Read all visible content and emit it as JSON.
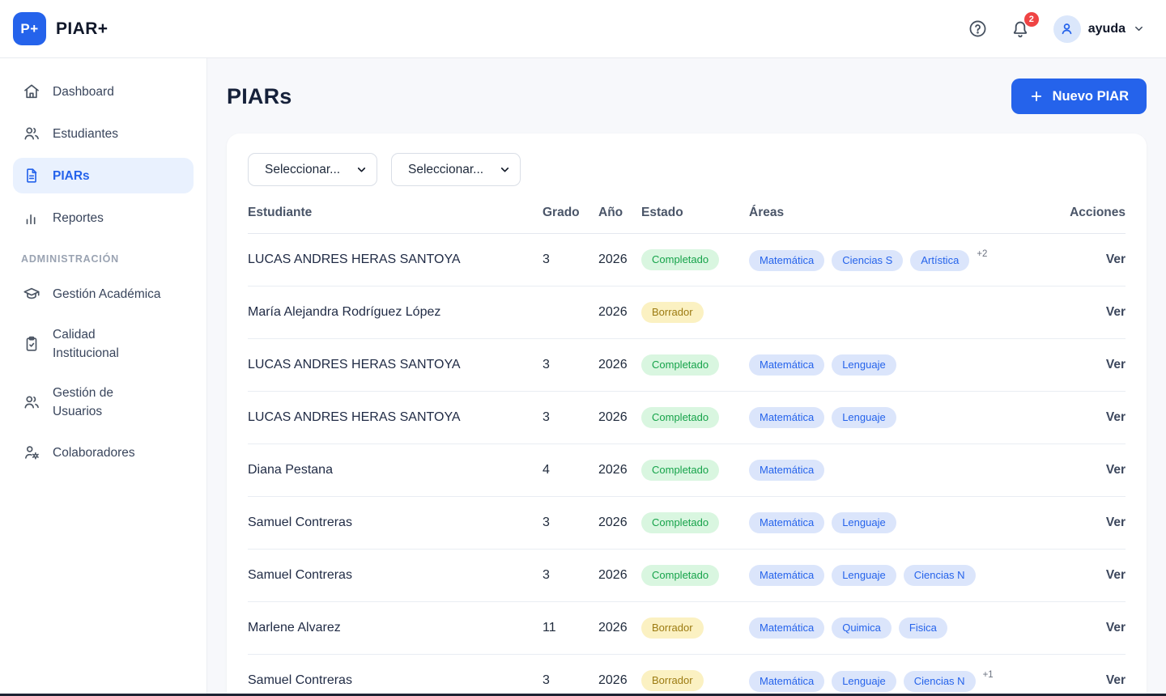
{
  "brand": {
    "logo_text": "P+",
    "name": "PIAR+"
  },
  "topbar": {
    "notification_count": "2",
    "user_label": "ayuda"
  },
  "sidebar": {
    "items": [
      {
        "label": "Dashboard",
        "icon": "home-icon",
        "active": false
      },
      {
        "label": "Estudiantes",
        "icon": "users-icon",
        "active": false
      },
      {
        "label": "PIARs",
        "icon": "document-icon",
        "active": true
      },
      {
        "label": "Reportes",
        "icon": "bar-chart-icon",
        "active": false
      }
    ],
    "section_label": "ADMINISTRACIÓN",
    "admin_items": [
      {
        "label": "Gestión Académica",
        "icon": "graduation-cap-icon",
        "active": false
      },
      {
        "label": "Calidad\nInstitucional",
        "icon": "clipboard-check-icon",
        "active": false
      },
      {
        "label": "Gestión de\nUsuarios",
        "icon": "users-icon",
        "active": false
      },
      {
        "label": "Colaboradores",
        "icon": "user-gear-icon",
        "active": false
      }
    ]
  },
  "main": {
    "title": "PIARs",
    "new_button_label": "Nuevo PIAR",
    "filters": [
      {
        "value": "Seleccionar..."
      },
      {
        "value": "Seleccionar..."
      }
    ],
    "table": {
      "columns": [
        "Estudiante",
        "Grado",
        "Año",
        "Estado",
        "Áreas",
        "Acciones"
      ],
      "action_label": "Ver",
      "rows": [
        {
          "student": "LUCAS ANDRES HERAS SANTOYA",
          "grade": "3",
          "year": "2026",
          "status": "Completado",
          "status_type": "completed",
          "areas": [
            "Matemática",
            "Ciencias S",
            "Artística"
          ],
          "extra": "+2"
        },
        {
          "student": "María Alejandra Rodríguez López",
          "grade": "",
          "year": "2026",
          "status": "Borrador",
          "status_type": "draft",
          "areas": [],
          "extra": ""
        },
        {
          "student": "LUCAS ANDRES HERAS SANTOYA",
          "grade": "3",
          "year": "2026",
          "status": "Completado",
          "status_type": "completed",
          "areas": [
            "Matemática",
            "Lenguaje"
          ],
          "extra": ""
        },
        {
          "student": "LUCAS ANDRES HERAS SANTOYA",
          "grade": "3",
          "year": "2026",
          "status": "Completado",
          "status_type": "completed",
          "areas": [
            "Matemática",
            "Lenguaje"
          ],
          "extra": ""
        },
        {
          "student": "Diana Pestana",
          "grade": "4",
          "year": "2026",
          "status": "Completado",
          "status_type": "completed",
          "areas": [
            "Matemática"
          ],
          "extra": ""
        },
        {
          "student": "Samuel Contreras",
          "grade": "3",
          "year": "2026",
          "status": "Completado",
          "status_type": "completed",
          "areas": [
            "Matemática",
            "Lenguaje"
          ],
          "extra": ""
        },
        {
          "student": "Samuel Contreras",
          "grade": "3",
          "year": "2026",
          "status": "Completado",
          "status_type": "completed",
          "areas": [
            "Matemática",
            "Lenguaje",
            "Ciencias N"
          ],
          "extra": ""
        },
        {
          "student": "Marlene Alvarez",
          "grade": "11",
          "year": "2026",
          "status": "Borrador",
          "status_type": "draft",
          "areas": [
            "Matemática",
            "Quimica",
            "Fisica"
          ],
          "extra": ""
        },
        {
          "student": "Samuel Contreras",
          "grade": "3",
          "year": "2026",
          "status": "Borrador",
          "status_type": "draft",
          "areas": [
            "Matemática",
            "Lenguaje",
            "Ciencias N"
          ],
          "extra": "+1"
        }
      ]
    }
  },
  "colors": {
    "accent": "#2563eb",
    "notification_badge": "#ef4444",
    "status_completed_bg": "#d9f6e0",
    "status_completed_text": "#16a34a",
    "status_draft_bg": "#fbf1c2",
    "status_draft_text": "#9c7b12",
    "area_pill_bg": "#dbe5fb",
    "area_pill_text": "#2563eb"
  }
}
